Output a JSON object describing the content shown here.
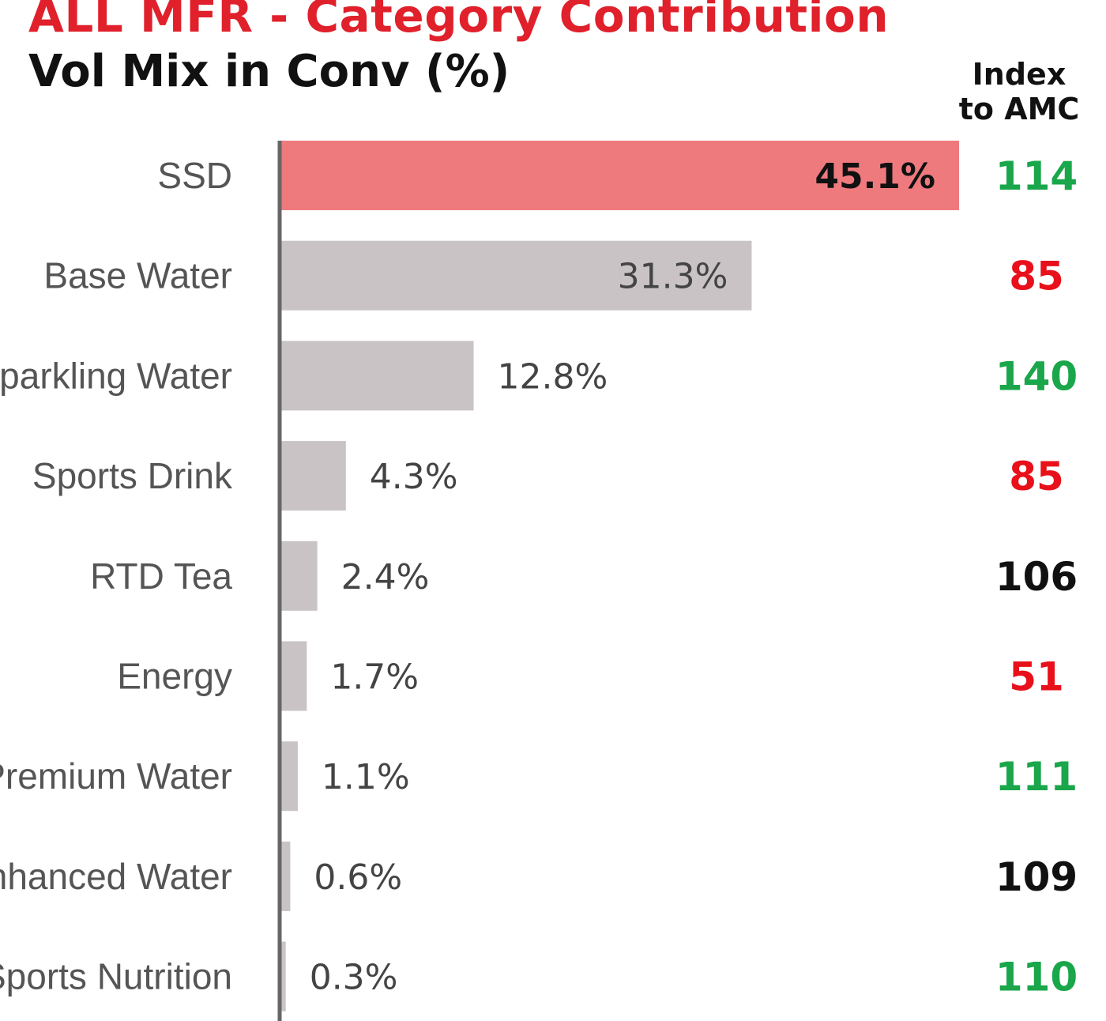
{
  "header": {
    "title": "ALL MFR - Category Contribution",
    "subtitle": "Vol Mix in Conv (%)",
    "index_header_line1": "Index",
    "index_header_line2": "to AMC"
  },
  "colors": {
    "title": "#e0202b",
    "highlight_bar": "#ef7a7d",
    "bar": "#c9c3c5",
    "axis": "#666666",
    "index_green": "#1aa64a",
    "index_red": "#e8101a",
    "index_black": "#111111"
  },
  "chart_data": {
    "type": "bar",
    "orientation": "horizontal",
    "title": "ALL MFR - Category Contribution",
    "subtitle": "Vol Mix in Conv (%)",
    "categories": [
      "SSD",
      "Base Water",
      "Sparkling Water",
      "Sports Drink",
      "RTD Tea",
      "Energy",
      "Premium Water",
      "Enhanced Water",
      "Sports Nutrition"
    ],
    "values": [
      45.1,
      31.3,
      12.8,
      4.3,
      2.4,
      1.7,
      1.1,
      0.6,
      0.3
    ],
    "value_labels": [
      "45.1%",
      "31.3%",
      "12.8%",
      "4.3%",
      "2.4%",
      "1.7%",
      "1.1%",
      "0.6%",
      "0.3%"
    ],
    "index_to_amc": [
      114,
      85,
      140,
      85,
      106,
      51,
      111,
      109,
      110
    ],
    "index_colors": [
      "green",
      "red",
      "green",
      "red",
      "black",
      "red",
      "green",
      "black",
      "green"
    ],
    "highlight": "SSD",
    "xlim": [
      0,
      45.1
    ],
    "grid": false
  }
}
